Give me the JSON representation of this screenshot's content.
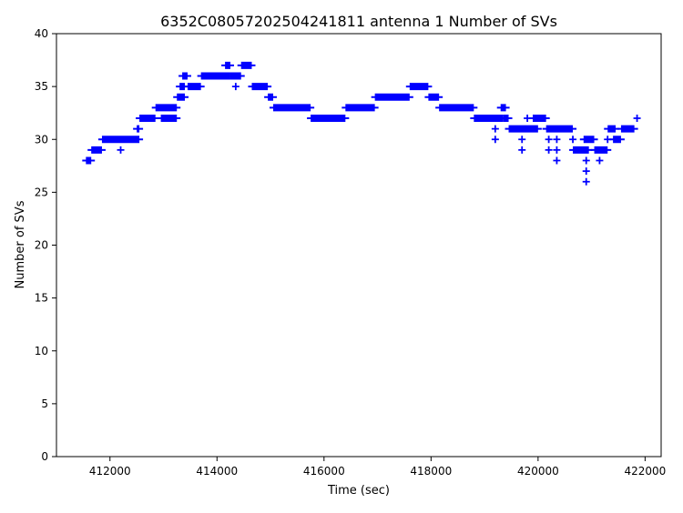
{
  "chart_data": {
    "type": "scatter",
    "title": "6352C08057202504241811 antenna 1 Number of SVs",
    "xlabel": "Time (sec)",
    "ylabel": "Number of SVs",
    "xlim": [
      411000,
      422300
    ],
    "ylim": [
      0,
      40
    ],
    "xticks": [
      412000,
      414000,
      416000,
      418000,
      420000,
      422000
    ],
    "yticks": [
      0,
      5,
      10,
      15,
      20,
      25,
      30,
      35,
      40
    ],
    "grid": false,
    "marker": "plus",
    "color": "#0000ff",
    "segments": [
      {
        "x0": 411550,
        "x1": 411650,
        "y": 28
      },
      {
        "x0": 411650,
        "x1": 411850,
        "y": 29
      },
      {
        "x0": 411850,
        "x1": 412550,
        "y": 30
      },
      {
        "x0": 412500,
        "x1": 412550,
        "y": 31
      },
      {
        "x0": 412550,
        "x1": 412850,
        "y": 32
      },
      {
        "x0": 412850,
        "x1": 413250,
        "y": 33
      },
      {
        "x0": 412950,
        "x1": 413250,
        "y": 32
      },
      {
        "x0": 413250,
        "x1": 413400,
        "y": 34
      },
      {
        "x0": 413300,
        "x1": 413400,
        "y": 35
      },
      {
        "x0": 413350,
        "x1": 413450,
        "y": 36
      },
      {
        "x0": 413450,
        "x1": 413700,
        "y": 35
      },
      {
        "x0": 413700,
        "x1": 414250,
        "y": 36
      },
      {
        "x0": 414150,
        "x1": 414250,
        "y": 37
      },
      {
        "x0": 414250,
        "x1": 414450,
        "y": 36
      },
      {
        "x0": 414450,
        "x1": 414650,
        "y": 37
      },
      {
        "x0": 414650,
        "x1": 414950,
        "y": 35
      },
      {
        "x0": 414950,
        "x1": 415050,
        "y": 34
      },
      {
        "x0": 415050,
        "x1": 415750,
        "y": 33
      },
      {
        "x0": 415750,
        "x1": 416400,
        "y": 32
      },
      {
        "x0": 416400,
        "x1": 416950,
        "y": 33
      },
      {
        "x0": 416950,
        "x1": 417600,
        "y": 34
      },
      {
        "x0": 417600,
        "x1": 417950,
        "y": 35
      },
      {
        "x0": 417950,
        "x1": 418150,
        "y": 34
      },
      {
        "x0": 418150,
        "x1": 418800,
        "y": 33
      },
      {
        "x0": 418800,
        "x1": 419350,
        "y": 32
      },
      {
        "x0": 419300,
        "x1": 419400,
        "y": 33
      },
      {
        "x0": 419350,
        "x1": 419450,
        "y": 32
      },
      {
        "x0": 419450,
        "x1": 420000,
        "y": 31
      },
      {
        "x0": 419900,
        "x1": 420150,
        "y": 32
      },
      {
        "x0": 420150,
        "x1": 420650,
        "y": 31
      },
      {
        "x0": 420650,
        "x1": 420950,
        "y": 29
      },
      {
        "x0": 420850,
        "x1": 421050,
        "y": 30
      },
      {
        "x0": 421050,
        "x1": 421300,
        "y": 29
      },
      {
        "x0": 421300,
        "x1": 421450,
        "y": 31
      },
      {
        "x0": 421400,
        "x1": 421550,
        "y": 30
      },
      {
        "x0": 421550,
        "x1": 421800,
        "y": 31
      }
    ],
    "points": [
      {
        "x": 412200,
        "y": 29
      },
      {
        "x": 414350,
        "y": 35
      },
      {
        "x": 419200,
        "y": 31
      },
      {
        "x": 419200,
        "y": 30
      },
      {
        "x": 419700,
        "y": 30
      },
      {
        "x": 419700,
        "y": 29
      },
      {
        "x": 419800,
        "y": 32
      },
      {
        "x": 420200,
        "y": 30
      },
      {
        "x": 420200,
        "y": 29
      },
      {
        "x": 420350,
        "y": 30
      },
      {
        "x": 420350,
        "y": 29
      },
      {
        "x": 420350,
        "y": 28
      },
      {
        "x": 420650,
        "y": 30
      },
      {
        "x": 420900,
        "y": 28
      },
      {
        "x": 420900,
        "y": 27
      },
      {
        "x": 420900,
        "y": 26
      },
      {
        "x": 421150,
        "y": 28
      },
      {
        "x": 421300,
        "y": 30
      },
      {
        "x": 421850,
        "y": 32
      }
    ]
  }
}
